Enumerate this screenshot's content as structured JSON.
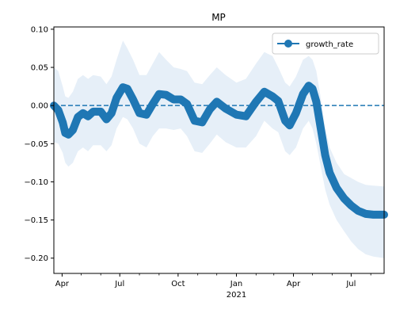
{
  "chart_data": {
    "type": "line",
    "title": "MP",
    "xlabel": "",
    "ylabel": "",
    "x_range": [
      "2020-03-19",
      "2021-08-22"
    ],
    "ylim": [
      -0.22,
      0.103
    ],
    "x_ticks_major": [
      {
        "date": "2020-04-01",
        "label": "Apr"
      },
      {
        "date": "2020-07-01",
        "label": "Jul"
      },
      {
        "date": "2020-10-01",
        "label": "Oct"
      },
      {
        "date": "2021-01-01",
        "label": "Jan"
      },
      {
        "date": "2021-04-01",
        "label": "Apr"
      },
      {
        "date": "2021-07-01",
        "label": "Jul"
      }
    ],
    "x_year_label": {
      "date": "2021-01-01",
      "label": "2021"
    },
    "x_ticks_minor": [
      "2020-05-01",
      "2020-06-01",
      "2020-08-01",
      "2020-09-01",
      "2020-11-01",
      "2020-12-01",
      "2021-02-01",
      "2021-03-01",
      "2021-05-01",
      "2021-06-01",
      "2021-08-01"
    ],
    "y_ticks": [
      -0.2,
      -0.15,
      -0.1,
      -0.05,
      0.0,
      0.05,
      0.1
    ],
    "y_tick_labels": [
      "−0.20",
      "−0.15",
      "−0.10",
      "−0.05",
      "0.00",
      "0.05",
      "0.10"
    ],
    "grid": false,
    "legend": {
      "position": "top-right",
      "entries": [
        "growth_rate"
      ]
    },
    "reference_line": {
      "y": 0.0,
      "style": "dashed"
    },
    "series": [
      {
        "name": "growth_rate",
        "color": "#1f77b4",
        "band_color": "#e6eff8",
        "points": [
          {
            "x": "2020-03-19",
            "y": 0.0,
            "lo": -0.048,
            "hi": 0.05
          },
          {
            "x": "2020-03-26",
            "y": -0.006,
            "lo": -0.05,
            "hi": 0.045
          },
          {
            "x": "2020-04-02",
            "y": -0.022,
            "lo": -0.062,
            "hi": 0.025
          },
          {
            "x": "2020-04-06",
            "y": -0.036,
            "lo": -0.075,
            "hi": 0.012
          },
          {
            "x": "2020-04-11",
            "y": -0.038,
            "lo": -0.08,
            "hi": 0.01
          },
          {
            "x": "2020-04-18",
            "y": -0.032,
            "lo": -0.075,
            "hi": 0.018
          },
          {
            "x": "2020-04-26",
            "y": -0.015,
            "lo": -0.06,
            "hi": 0.035
          },
          {
            "x": "2020-05-04",
            "y": -0.01,
            "lo": -0.055,
            "hi": 0.04
          },
          {
            "x": "2020-05-12",
            "y": -0.014,
            "lo": -0.06,
            "hi": 0.035
          },
          {
            "x": "2020-05-20",
            "y": -0.008,
            "lo": -0.052,
            "hi": 0.04
          },
          {
            "x": "2020-06-01",
            "y": -0.008,
            "lo": -0.052,
            "hi": 0.038
          },
          {
            "x": "2020-06-10",
            "y": -0.018,
            "lo": -0.06,
            "hi": 0.028
          },
          {
            "x": "2020-06-18",
            "y": -0.01,
            "lo": -0.052,
            "hi": 0.038
          },
          {
            "x": "2020-06-26",
            "y": 0.01,
            "lo": -0.03,
            "hi": 0.06
          },
          {
            "x": "2020-07-06",
            "y": 0.024,
            "lo": -0.015,
            "hi": 0.085
          },
          {
            "x": "2020-07-13",
            "y": 0.022,
            "lo": -0.018,
            "hi": 0.075
          },
          {
            "x": "2020-07-22",
            "y": 0.008,
            "lo": -0.03,
            "hi": 0.06
          },
          {
            "x": "2020-08-01",
            "y": -0.01,
            "lo": -0.05,
            "hi": 0.04
          },
          {
            "x": "2020-08-12",
            "y": -0.012,
            "lo": -0.055,
            "hi": 0.04
          },
          {
            "x": "2020-08-22",
            "y": 0.002,
            "lo": -0.04,
            "hi": 0.055
          },
          {
            "x": "2020-09-01",
            "y": 0.015,
            "lo": -0.03,
            "hi": 0.07
          },
          {
            "x": "2020-09-12",
            "y": 0.014,
            "lo": -0.03,
            "hi": 0.06
          },
          {
            "x": "2020-09-24",
            "y": 0.008,
            "lo": -0.032,
            "hi": 0.05
          },
          {
            "x": "2020-10-05",
            "y": 0.008,
            "lo": -0.03,
            "hi": 0.048
          },
          {
            "x": "2020-10-15",
            "y": 0.002,
            "lo": -0.04,
            "hi": 0.045
          },
          {
            "x": "2020-10-27",
            "y": -0.02,
            "lo": -0.06,
            "hi": 0.03
          },
          {
            "x": "2020-11-08",
            "y": -0.022,
            "lo": -0.062,
            "hi": 0.028
          },
          {
            "x": "2020-11-20",
            "y": -0.005,
            "lo": -0.05,
            "hi": 0.04
          },
          {
            "x": "2020-12-01",
            "y": 0.005,
            "lo": -0.038,
            "hi": 0.05
          },
          {
            "x": "2020-12-15",
            "y": -0.004,
            "lo": -0.048,
            "hi": 0.04
          },
          {
            "x": "2021-01-01",
            "y": -0.012,
            "lo": -0.055,
            "hi": 0.03
          },
          {
            "x": "2021-01-16",
            "y": -0.014,
            "lo": -0.055,
            "hi": 0.035
          },
          {
            "x": "2021-02-01",
            "y": 0.005,
            "lo": -0.04,
            "hi": 0.055
          },
          {
            "x": "2021-02-14",
            "y": 0.018,
            "lo": -0.02,
            "hi": 0.07
          },
          {
            "x": "2021-02-27",
            "y": 0.012,
            "lo": -0.03,
            "hi": 0.065
          },
          {
            "x": "2021-03-08",
            "y": 0.006,
            "lo": -0.035,
            "hi": 0.05
          },
          {
            "x": "2021-03-19",
            "y": -0.02,
            "lo": -0.06,
            "hi": 0.03
          },
          {
            "x": "2021-03-26",
            "y": -0.026,
            "lo": -0.065,
            "hi": 0.025
          },
          {
            "x": "2021-04-05",
            "y": -0.01,
            "lo": -0.055,
            "hi": 0.038
          },
          {
            "x": "2021-04-16",
            "y": 0.015,
            "lo": -0.03,
            "hi": 0.06
          },
          {
            "x": "2021-04-25",
            "y": 0.026,
            "lo": -0.02,
            "hi": 0.065
          },
          {
            "x": "2021-05-01",
            "y": 0.022,
            "lo": -0.03,
            "hi": 0.06
          },
          {
            "x": "2021-05-07",
            "y": 0.005,
            "lo": -0.05,
            "hi": 0.045
          },
          {
            "x": "2021-05-14",
            "y": -0.03,
            "lo": -0.08,
            "hi": 0.01
          },
          {
            "x": "2021-05-21",
            "y": -0.065,
            "lo": -0.11,
            "hi": -0.03
          },
          {
            "x": "2021-05-28",
            "y": -0.088,
            "lo": -0.13,
            "hi": -0.055
          },
          {
            "x": "2021-06-08",
            "y": -0.108,
            "lo": -0.15,
            "hi": -0.075
          },
          {
            "x": "2021-06-20",
            "y": -0.122,
            "lo": -0.165,
            "hi": -0.09
          },
          {
            "x": "2021-07-01",
            "y": -0.131,
            "lo": -0.178,
            "hi": -0.095
          },
          {
            "x": "2021-07-12",
            "y": -0.138,
            "lo": -0.188,
            "hi": -0.1
          },
          {
            "x": "2021-07-24",
            "y": -0.142,
            "lo": -0.195,
            "hi": -0.104
          },
          {
            "x": "2021-08-05",
            "y": -0.143,
            "lo": -0.198,
            "hi": -0.105
          },
          {
            "x": "2021-08-22",
            "y": -0.143,
            "lo": -0.2,
            "hi": -0.106
          }
        ]
      }
    ]
  }
}
